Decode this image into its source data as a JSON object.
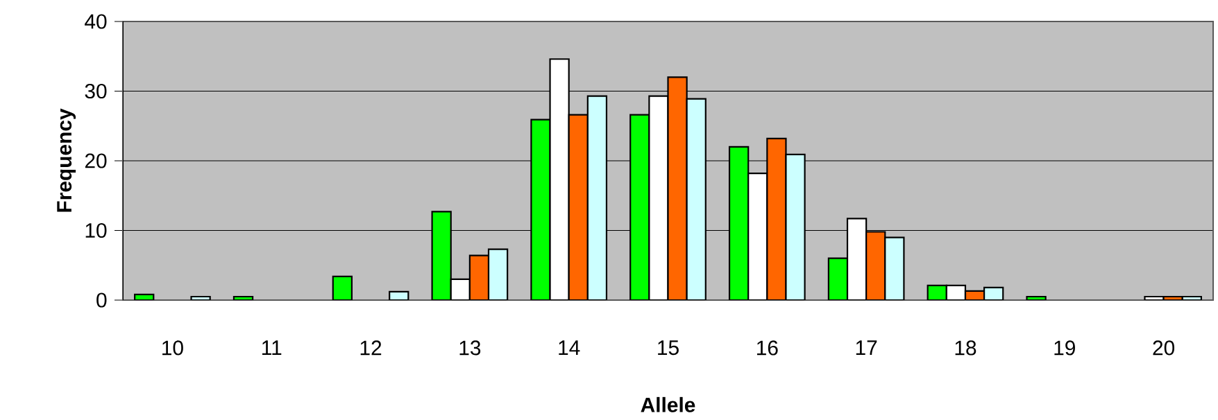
{
  "chart_data": {
    "type": "bar",
    "xlabel": "Allele",
    "ylabel": "Frequency",
    "categories": [
      "10",
      "11",
      "12",
      "13",
      "14",
      "15",
      "16",
      "17",
      "18",
      "19",
      "20"
    ],
    "series": [
      {
        "color": "#00ff00",
        "values": [
          0.8,
          0.5,
          3.4,
          12.7,
          25.9,
          26.6,
          22.0,
          6.0,
          2.1,
          0.5,
          null
        ]
      },
      {
        "color": "#ffffff",
        "values": [
          null,
          null,
          null,
          3.0,
          34.6,
          29.3,
          18.2,
          11.7,
          2.1,
          null,
          0.5
        ]
      },
      {
        "color": "#ff6600",
        "values": [
          null,
          null,
          null,
          6.4,
          26.6,
          32.0,
          23.2,
          9.8,
          1.3,
          null,
          0.5
        ]
      },
      {
        "color": "#ccffff",
        "values": [
          0.5,
          null,
          1.2,
          7.3,
          29.3,
          28.9,
          20.9,
          9.0,
          1.8,
          null,
          0.5
        ]
      }
    ],
    "ylim": [
      0,
      40
    ],
    "yticks": [
      0,
      10,
      20,
      30,
      40
    ],
    "grid": "y"
  }
}
